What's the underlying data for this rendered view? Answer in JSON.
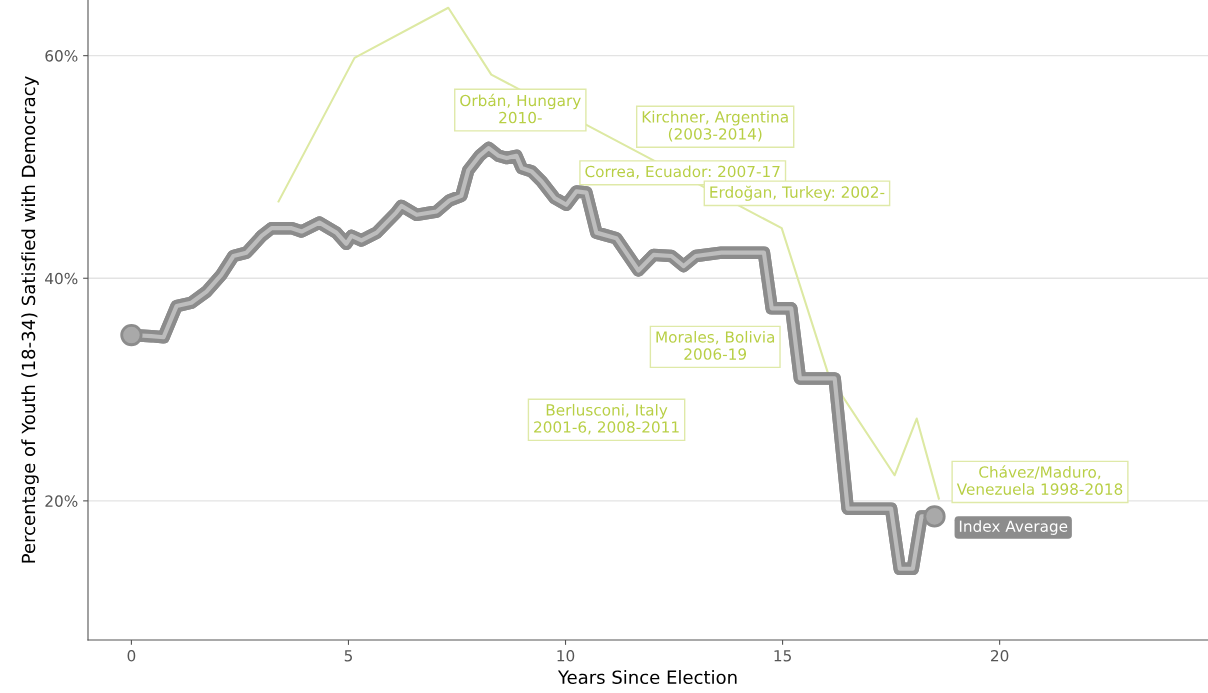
{
  "chart_data": {
    "type": "line",
    "xlabel": "Years Since Election",
    "ylabel": "Percentage of Youth (18-34) Satisfied with Democracy",
    "xlim": [
      -1,
      24.8
    ],
    "ylim": [
      7.5,
      65
    ],
    "xticks": [
      0,
      5,
      10,
      15,
      20
    ],
    "yticks": [
      {
        "value": 20,
        "label": "20%"
      },
      {
        "value": 40,
        "label": "40%"
      },
      {
        "value": 60,
        "label": "60%"
      }
    ],
    "grid": "y",
    "legend": false,
    "series": [
      {
        "color": "#dde9a3",
        "x": [
          3.39,
          5.14,
          7.3,
          8.29,
          14.98,
          16.06,
          17.58,
          18.09,
          18.6
        ],
        "values": [
          46.9,
          59.8,
          64.3,
          58.3,
          44.5,
          31.3,
          22.3,
          27.4,
          20.2
        ]
      },
      {
        "name": "Index Average",
        "color": "#8c8c8c",
        "x": [
          0,
          0.46,
          0.74,
          1.04,
          1.38,
          1.73,
          2.07,
          2.35,
          2.65,
          3.0,
          3.23,
          3.69,
          3.92,
          4.33,
          4.72,
          4.95,
          5.07,
          5.3,
          5.65,
          6.1,
          6.22,
          6.57,
          7.03,
          7.33,
          7.6,
          7.76,
          8.02,
          8.23,
          8.46,
          8.64,
          8.87,
          8.99,
          9.22,
          9.45,
          9.75,
          10.02,
          10.25,
          10.48,
          10.71,
          11.17,
          11.68,
          12.03,
          12.44,
          12.72,
          13.0,
          13.59,
          14.57,
          14.75,
          15.2,
          15.4,
          16.2,
          16.5,
          17.5,
          17.7,
          18.0,
          18.2,
          18.5
        ],
        "values": [
          34.9,
          34.8,
          34.7,
          37.5,
          37.8,
          38.8,
          40.3,
          42.0,
          42.3,
          43.8,
          44.5,
          44.5,
          44.2,
          45.0,
          44.1,
          43.1,
          43.8,
          43.4,
          44.1,
          45.9,
          46.5,
          45.7,
          46.0,
          47.0,
          47.4,
          49.7,
          51.0,
          51.7,
          51.0,
          50.8,
          51.0,
          49.9,
          49.6,
          48.7,
          47.2,
          46.6,
          47.8,
          47.7,
          44.1,
          43.6,
          40.7,
          42.1,
          42.0,
          41.1,
          42.0,
          42.3,
          42.3,
          37.3,
          37.3,
          31.0,
          31.0,
          19.3,
          19.3,
          13.9,
          13.9,
          18.6,
          18.6
        ]
      }
    ],
    "annotations": [
      "Orbán, Hungary\n2010-",
      "Kirchner, Argentina\n(2003-2014)",
      "Correa, Ecuador: 2007-17",
      "Erdoğan, Turkey: 2002-",
      "Morales, Bolivia\n2006-19",
      "Berlusconi, Italy\n2001-6, 2008-2011",
      "Chávez/Maduro,\nVenezuela 1998-2018"
    ]
  }
}
